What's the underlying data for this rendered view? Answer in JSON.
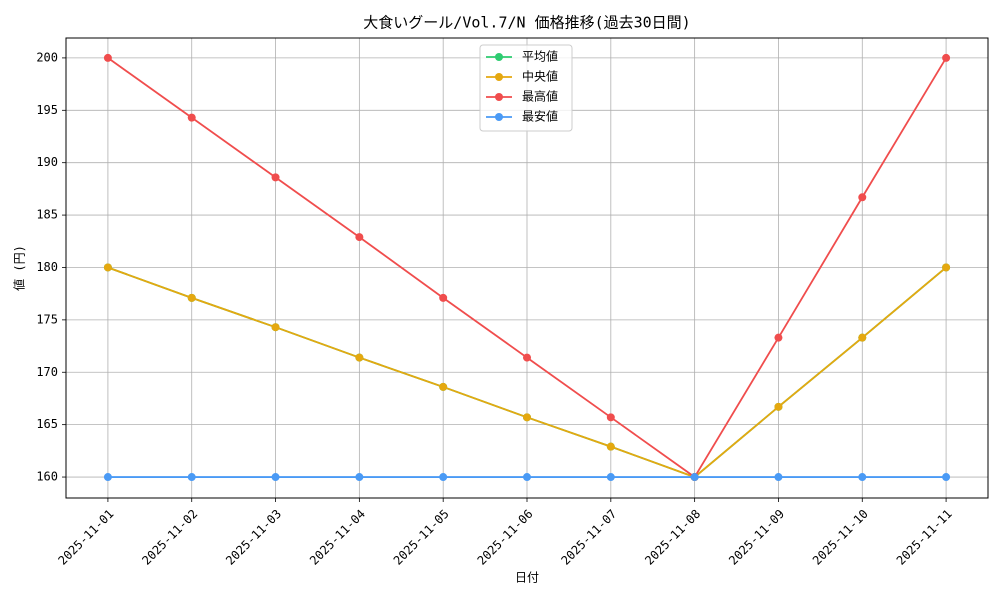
{
  "chart_data": {
    "type": "line",
    "title": "大食いグール/Vol.7/N 価格推移(過去30日間)",
    "x_label": "日付",
    "y_label": "値 (円)",
    "categories": [
      "2025-11-01",
      "2025-11-02",
      "2025-11-03",
      "2025-11-04",
      "2025-11-05",
      "2025-11-06",
      "2025-11-07",
      "2025-11-08",
      "2025-11-09",
      "2025-11-10",
      "2025-11-11"
    ],
    "series": [
      {
        "name": "平均値",
        "color": "#2ecc71",
        "values": [
          180,
          177.1,
          174.3,
          171.4,
          168.6,
          165.7,
          162.9,
          160,
          166.7,
          173.3,
          180
        ]
      },
      {
        "name": "中央値",
        "color": "#e5a810",
        "values": [
          180,
          177.1,
          174.3,
          171.4,
          168.6,
          165.7,
          162.9,
          160,
          166.7,
          173.3,
          180
        ]
      },
      {
        "name": "最高値",
        "color": "#f04d4d",
        "values": [
          200,
          194.3,
          188.6,
          182.9,
          177.1,
          171.4,
          165.7,
          160,
          173.3,
          186.7,
          200
        ]
      },
      {
        "name": "最安値",
        "color": "#4a9af5",
        "values": [
          160,
          160,
          160,
          160,
          160,
          160,
          160,
          160,
          160,
          160,
          160
        ]
      }
    ],
    "ylim": [
      158,
      201.9
    ],
    "yticks": [
      160,
      165,
      170,
      175,
      180,
      185,
      190,
      195,
      200
    ],
    "grid": true,
    "legend": "upper center"
  }
}
